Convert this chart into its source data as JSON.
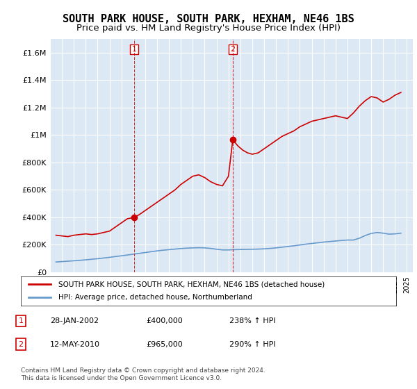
{
  "title": "SOUTH PARK HOUSE, SOUTH PARK, HEXHAM, NE46 1BS",
  "subtitle": "Price paid vs. HM Land Registry's House Price Index (HPI)",
  "title_fontsize": 11,
  "subtitle_fontsize": 9.5,
  "ylim": [
    0,
    1700000
  ],
  "yticks": [
    0,
    200000,
    400000,
    600000,
    800000,
    1000000,
    1200000,
    1400000,
    1600000
  ],
  "ytick_labels": [
    "£0",
    "£200K",
    "£400K",
    "£600K",
    "£800K",
    "£1M",
    "£1.2M",
    "£1.4M",
    "£1.6M"
  ],
  "xlim_start": 1995.0,
  "xlim_end": 2025.5,
  "bg_color": "#dce9f5",
  "plot_bg_color": "#dce9f5",
  "grid_color": "#ffffff",
  "red_line_color": "#cc0000",
  "blue_line_color": "#6699cc",
  "sale1_date": 2002.08,
  "sale1_price": 400000,
  "sale2_date": 2010.36,
  "sale2_price": 965000,
  "legend_label_red": "SOUTH PARK HOUSE, SOUTH PARK, HEXHAM, NE46 1BS (detached house)",
  "legend_label_blue": "HPI: Average price, detached house, Northumberland",
  "table_rows": [
    {
      "num": "1",
      "date": "28-JAN-2002",
      "price": "£400,000",
      "hpi": "238% ↑ HPI"
    },
    {
      "num": "2",
      "date": "12-MAY-2010",
      "price": "£965,000",
      "hpi": "290% ↑ HPI"
    }
  ],
  "footnote": "Contains HM Land Registry data © Crown copyright and database right 2024.\nThis data is licensed under the Open Government Licence v3.0.",
  "red_line_x": [
    1995.5,
    1996.0,
    1996.5,
    1997.0,
    1997.5,
    1998.0,
    1998.5,
    1999.0,
    1999.5,
    2000.0,
    2000.5,
    2001.0,
    2001.5,
    2002.08,
    2002.5,
    2003.0,
    2003.5,
    2004.0,
    2004.5,
    2005.0,
    2005.5,
    2006.0,
    2006.5,
    2007.0,
    2007.5,
    2008.0,
    2008.5,
    2009.0,
    2009.5,
    2010.0,
    2010.36,
    2010.8,
    2011.2,
    2011.6,
    2012.0,
    2012.5,
    2013.0,
    2013.5,
    2014.0,
    2014.5,
    2015.0,
    2015.5,
    2016.0,
    2016.5,
    2017.0,
    2017.5,
    2018.0,
    2018.5,
    2019.0,
    2019.5,
    2020.0,
    2020.5,
    2021.0,
    2021.5,
    2022.0,
    2022.5,
    2023.0,
    2023.5,
    2024.0,
    2024.5
  ],
  "red_line_y": [
    270000,
    265000,
    260000,
    270000,
    275000,
    280000,
    275000,
    280000,
    290000,
    300000,
    330000,
    360000,
    390000,
    400000,
    420000,
    450000,
    480000,
    510000,
    540000,
    570000,
    600000,
    640000,
    670000,
    700000,
    710000,
    690000,
    660000,
    640000,
    630000,
    700000,
    965000,
    920000,
    890000,
    870000,
    860000,
    870000,
    900000,
    930000,
    960000,
    990000,
    1010000,
    1030000,
    1060000,
    1080000,
    1100000,
    1110000,
    1120000,
    1130000,
    1140000,
    1130000,
    1120000,
    1160000,
    1210000,
    1250000,
    1280000,
    1270000,
    1240000,
    1260000,
    1290000,
    1310000
  ],
  "blue_line_x": [
    1995.5,
    1996.0,
    1996.5,
    1997.0,
    1997.5,
    1998.0,
    1998.5,
    1999.0,
    1999.5,
    2000.0,
    2000.5,
    2001.0,
    2001.5,
    2002.0,
    2002.5,
    2003.0,
    2003.5,
    2004.0,
    2004.5,
    2005.0,
    2005.5,
    2006.0,
    2006.5,
    2007.0,
    2007.5,
    2008.0,
    2008.5,
    2009.0,
    2009.5,
    2010.0,
    2010.5,
    2011.0,
    2011.5,
    2012.0,
    2012.5,
    2013.0,
    2013.5,
    2014.0,
    2014.5,
    2015.0,
    2015.5,
    2016.0,
    2016.5,
    2017.0,
    2017.5,
    2018.0,
    2018.5,
    2019.0,
    2019.5,
    2020.0,
    2020.5,
    2021.0,
    2021.5,
    2022.0,
    2022.5,
    2023.0,
    2023.5,
    2024.0,
    2024.5
  ],
  "blue_line_y": [
    75000,
    78000,
    81000,
    84000,
    87000,
    91000,
    95000,
    99000,
    104000,
    109000,
    115000,
    120000,
    126000,
    132000,
    138000,
    144000,
    150000,
    156000,
    161000,
    165000,
    169000,
    173000,
    176000,
    178000,
    179000,
    178000,
    174000,
    168000,
    163000,
    163000,
    165000,
    166000,
    167000,
    168000,
    169000,
    171000,
    174000,
    178000,
    183000,
    188000,
    193000,
    199000,
    205000,
    210000,
    215000,
    220000,
    224000,
    228000,
    232000,
    235000,
    235000,
    248000,
    268000,
    283000,
    290000,
    285000,
    278000,
    280000,
    285000
  ]
}
